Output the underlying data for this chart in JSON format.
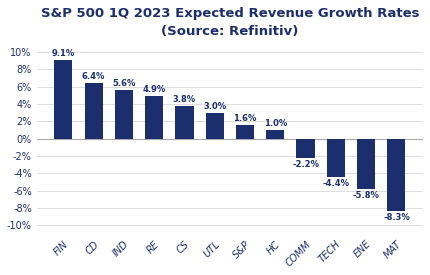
{
  "title_line1": "S&P 500 1Q 2023 Expected Revenue Growth Rates",
  "title_line2": "(Source: Refinitiv)",
  "categories": [
    "FIN",
    "CD",
    "IND",
    "RE",
    "CS",
    "UTL",
    "S&P",
    "HC",
    "COMM",
    "TECH",
    "ENE",
    "MAT"
  ],
  "values": [
    9.1,
    6.4,
    5.6,
    4.9,
    3.8,
    3.0,
    1.6,
    1.0,
    -2.2,
    -4.4,
    -5.8,
    -8.3
  ],
  "labels": [
    "9.1%",
    "6.4%",
    "5.6%",
    "4.9%",
    "3.8%",
    "3.0%",
    "1.6%",
    "1.0%",
    "-2.2%",
    "-4.4%",
    "-5.8%",
    "-8.3%"
  ],
  "bar_color": "#1b2e6e",
  "title_color": "#1b2e6e",
  "label_color": "#1b2e6e",
  "tick_color": "#1b2e6e",
  "ylim": [
    -11,
    11
  ],
  "yticks": [
    -10,
    -8,
    -6,
    -4,
    -2,
    0,
    2,
    4,
    6,
    8,
    10
  ],
  "ytick_labels": [
    "-10%",
    "-8%",
    "-6%",
    "-4%",
    "-2%",
    "0%",
    "2%",
    "4%",
    "6%",
    "8%",
    "10%"
  ],
  "background_color": "#ffffff",
  "label_fontsize": 6.0,
  "title_fontsize1": 9.5,
  "title_fontsize2": 8.5,
  "xtick_fontsize": 7.0,
  "ytick_fontsize": 7.0
}
